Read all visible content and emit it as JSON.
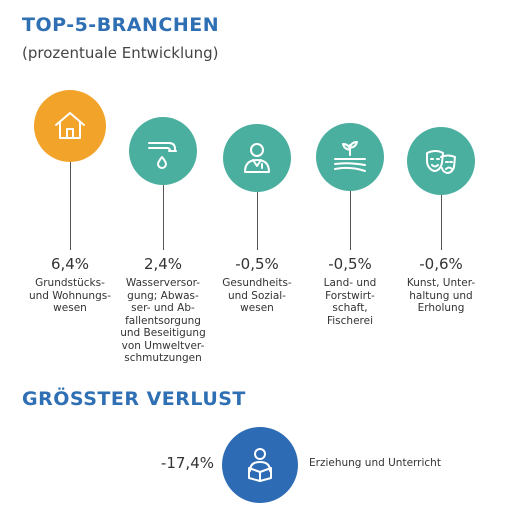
{
  "title": "TOP-5-BRANCHEN",
  "subtitle": "(prozentuale Entwicklung)",
  "colors": {
    "heading": "#2f6fb3",
    "highlight": "#f2a32a",
    "teal": "#4bafa0",
    "loss": "#2e6bb5"
  },
  "chart_data": {
    "type": "bar",
    "unit": "%",
    "categories": [
      "Grundstücks- und Wohnungswesen",
      "Wasserversorgung; Abwasser- und Abfallentsorgung und Beseitigung von Umweltverschmutzungen",
      "Gesundheits- und Sozialwesen",
      "Land- und Forstwirtschaft, Fischerei",
      "Kunst, Unterhaltung und Erholung"
    ],
    "values": [
      6.4,
      2.4,
      -0.5,
      -0.5,
      -0.6
    ],
    "value_labels": [
      "6,4%",
      "2,4%",
      "-0,5%",
      "-0,5%",
      "-0,6%"
    ],
    "category_labels": [
      "Grundstücks-\nund Wohnungs-\nwesen",
      "Wasserversor-\ngung; Abwas-\nser- und Ab-\nfallentsorgung\nund Beseitigung\nvon Umweltver-\nschmutzungen",
      "Gesundheits-\nund Sozial-\nwesen",
      "Land- und\nForstwirt-\nschaft,\nFischerei",
      "Kunst, Unter-\nhaltung und\nErholung"
    ],
    "icons": [
      "house-icon",
      "water-tap-icon",
      "doctor-icon",
      "field-plant-icon",
      "theater-masks-icon"
    ],
    "circle_colors": [
      "#f2a32a",
      "#4bafa0",
      "#4bafa0",
      "#4bafa0",
      "#4bafa0"
    ]
  },
  "loss": {
    "heading": "GRÖSSTER VERLUST",
    "value": -17.4,
    "value_label": "-17,4%",
    "label": "Erziehung und Unterricht",
    "icon": "reader-icon"
  }
}
